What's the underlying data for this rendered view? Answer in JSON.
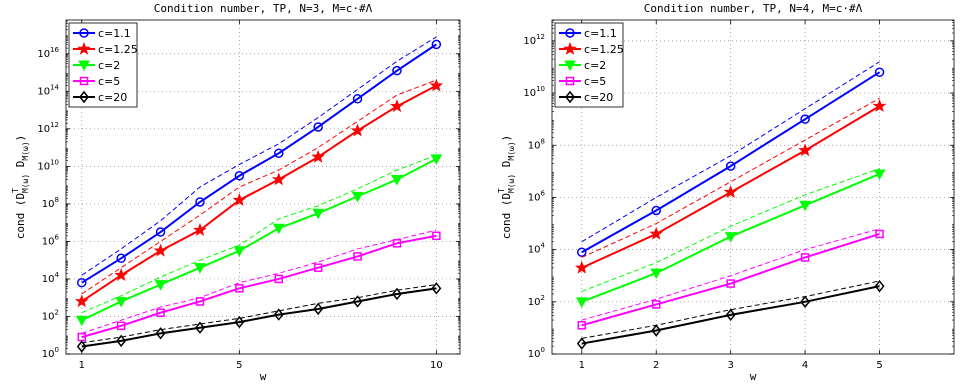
{
  "chart_data": [
    {
      "type": "line",
      "title": "Condition number, TP, N=3, M=c·#Λ",
      "xlabel": "w",
      "ylabel": "cond (D_{M(ω)}^T D_{M(ω)})",
      "x_scale": "linear",
      "y_scale": "log",
      "xlim": [
        0.6,
        10.6
      ],
      "ylim_log10": [
        0,
        17.8
      ],
      "xticks": [
        "1",
        "5",
        "10"
      ],
      "yticks_exponents": [
        0,
        2,
        4,
        6,
        8,
        10,
        12,
        14,
        16
      ],
      "grid": "dotted",
      "legend_position": "top-left",
      "x": [
        1,
        2,
        3,
        4,
        5,
        6,
        7,
        8,
        9,
        10
      ],
      "series": [
        {
          "name": "c=1.1",
          "color": "#0000ff",
          "marker": "circle",
          "log10_values": [
            3.8,
            5.1,
            6.5,
            8.1,
            9.5,
            10.7,
            12.1,
            13.6,
            15.1,
            16.5
          ],
          "log10_bound": [
            4.2,
            5.6,
            7.1,
            8.9,
            10.1,
            11.2,
            12.6,
            14.1,
            15.6,
            16.9
          ]
        },
        {
          "name": "c=1.25",
          "color": "#ff0000",
          "marker": "star",
          "log10_values": [
            2.8,
            4.2,
            5.5,
            6.6,
            8.2,
            9.3,
            10.5,
            11.9,
            13.2,
            14.3
          ],
          "log10_bound": [
            3.2,
            4.6,
            6.0,
            7.4,
            8.9,
            9.8,
            11.0,
            12.4,
            13.8,
            14.6
          ]
        },
        {
          "name": "c=2",
          "color": "#00ff00",
          "marker": "triangle-down",
          "log10_values": [
            1.8,
            2.8,
            3.7,
            4.6,
            5.5,
            6.7,
            7.5,
            8.4,
            9.3,
            10.4
          ],
          "log10_bound": [
            2.2,
            3.1,
            4.1,
            5.0,
            5.8,
            7.2,
            7.9,
            8.8,
            9.8,
            10.6
          ]
        },
        {
          "name": "c=5",
          "color": "#ff00ff",
          "marker": "square",
          "log10_values": [
            0.9,
            1.5,
            2.2,
            2.8,
            3.5,
            4.0,
            4.6,
            5.2,
            5.9,
            6.3
          ],
          "log10_bound": [
            1.1,
            1.8,
            2.5,
            3.0,
            3.8,
            4.3,
            4.9,
            5.6,
            6.1,
            6.6
          ]
        },
        {
          "name": "c=20",
          "color": "#000000",
          "marker": "diamond",
          "log10_values": [
            0.4,
            0.7,
            1.1,
            1.4,
            1.7,
            2.1,
            2.4,
            2.8,
            3.2,
            3.5
          ],
          "log10_bound": [
            0.6,
            0.9,
            1.3,
            1.6,
            1.9,
            2.3,
            2.7,
            3.0,
            3.4,
            3.7
          ]
        }
      ]
    },
    {
      "type": "line",
      "title": "Condition number, TP, N=4, M=c·#Λ",
      "xlabel": "w",
      "ylabel": "cond (D_{M(ω)}^T D_{M(ω)})",
      "x_scale": "linear",
      "y_scale": "log",
      "xlim": [
        0.6,
        6.0
      ],
      "ylim_log10": [
        0,
        12.8
      ],
      "xticks": [
        "1",
        "2",
        "3",
        "4",
        "5"
      ],
      "yticks_exponents": [
        0,
        2,
        4,
        6,
        8,
        10,
        12
      ],
      "grid": "dotted",
      "legend_position": "top-left",
      "x": [
        1,
        2,
        3,
        4,
        5
      ],
      "series": [
        {
          "name": "c=1.1",
          "color": "#0000ff",
          "marker": "circle",
          "log10_values": [
            3.9,
            5.5,
            7.2,
            9.0,
            10.8
          ],
          "log10_bound": [
            4.3,
            6.0,
            7.6,
            9.4,
            11.2
          ]
        },
        {
          "name": "c=1.25",
          "color": "#ff0000",
          "marker": "star",
          "log10_values": [
            3.3,
            4.6,
            6.2,
            7.8,
            9.5
          ],
          "log10_bound": [
            3.7,
            5.0,
            6.6,
            8.2,
            9.8
          ]
        },
        {
          "name": "c=2",
          "color": "#00ff00",
          "marker": "triangle-down",
          "log10_values": [
            2.0,
            3.1,
            4.5,
            5.7,
            6.9
          ],
          "log10_bound": [
            2.4,
            3.5,
            4.9,
            6.1,
            7.1
          ]
        },
        {
          "name": "c=5",
          "color": "#ff00ff",
          "marker": "square",
          "log10_values": [
            1.1,
            1.9,
            2.7,
            3.7,
            4.6
          ],
          "log10_bound": [
            1.3,
            2.1,
            3.0,
            4.0,
            4.8
          ]
        },
        {
          "name": "c=20",
          "color": "#000000",
          "marker": "diamond",
          "log10_values": [
            0.4,
            0.9,
            1.5,
            2.0,
            2.6
          ],
          "log10_bound": [
            0.6,
            1.1,
            1.7,
            2.2,
            2.8
          ]
        }
      ]
    }
  ]
}
